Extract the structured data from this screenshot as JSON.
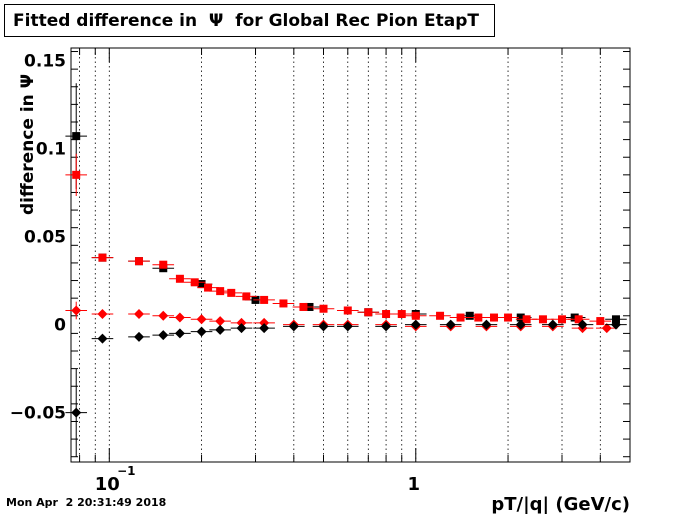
{
  "title": "Fitted difference in  Ψ  for Global Rec Pion EtapT",
  "timestamp": "Mon Apr  2 20:31:49 2018",
  "chart_data": {
    "type": "scatter",
    "title": "Fitted difference in  Ψ  for Global Rec Pion EtapT",
    "xlabel": "pT/|q| (GeV/c)",
    "ylabel": "difference in  Ψ",
    "xscale": "log",
    "xlim": [
      0.075,
      5.0
    ],
    "ylim": [
      -0.078,
      0.157
    ],
    "grid": true,
    "x_ticks": [
      {
        "value": 0.1,
        "label": "10",
        "sup": "−1"
      },
      {
        "value": 1,
        "label": "1"
      }
    ],
    "y_ticks": [
      {
        "value": -0.05,
        "label": "−0.05"
      },
      {
        "value": 0,
        "label": "0"
      },
      {
        "value": 0.05,
        "label": "0.05"
      },
      {
        "value": 0.1,
        "label": "0.1"
      },
      {
        "value": 0.15,
        "label": "0.15"
      }
    ],
    "series": [
      {
        "marker": "square",
        "color": "#000000",
        "x": [
          0.078,
          0.095,
          0.125,
          0.15,
          0.2,
          0.3,
          0.45,
          0.7,
          1.0,
          1.5,
          2.2,
          3.3,
          4.5
        ],
        "y": [
          0.107,
          0.038,
          0.036,
          0.032,
          0.023,
          0.014,
          0.01,
          0.007,
          0.006,
          0.005,
          0.004,
          0.004,
          0.003
        ],
        "err": [
          0.03,
          0.002,
          0.002,
          0.002,
          0.001,
          0.001,
          0.001,
          0.001,
          0.001,
          0.001,
          0.001,
          0.001,
          0.002
        ]
      },
      {
        "marker": "square",
        "color": "#ff0000",
        "x": [
          0.078,
          0.095,
          0.125,
          0.15,
          0.17,
          0.19,
          0.21,
          0.23,
          0.25,
          0.28,
          0.32,
          0.37,
          0.43,
          0.5,
          0.6,
          0.7,
          0.8,
          0.9,
          1.0,
          1.2,
          1.4,
          1.6,
          1.8,
          2.0,
          2.3,
          2.6,
          3.0,
          3.4,
          4.0
        ],
        "y": [
          0.085,
          0.038,
          0.036,
          0.034,
          0.026,
          0.024,
          0.021,
          0.019,
          0.018,
          0.016,
          0.014,
          0.012,
          0.01,
          0.009,
          0.008,
          0.007,
          0.006,
          0.006,
          0.005,
          0.005,
          0.004,
          0.004,
          0.004,
          0.004,
          0.003,
          0.003,
          0.003,
          0.003,
          0.002
        ],
        "err": [
          0.012,
          0.002,
          0.002,
          0.002,
          0.002,
          0.001,
          0.001,
          0.001,
          0.001,
          0.001,
          0.001,
          0.001,
          0.001,
          0.001,
          0.001,
          0.001,
          0.001,
          0.001,
          0.001,
          0.001,
          0.001,
          0.001,
          0.001,
          0.001,
          0.001,
          0.001,
          0.001,
          0.001,
          0.002
        ]
      },
      {
        "marker": "diamond",
        "color": "#ff0000",
        "x": [
          0.078,
          0.095,
          0.125,
          0.15,
          0.17,
          0.2,
          0.23,
          0.27,
          0.32,
          0.4,
          0.5,
          0.6,
          0.8,
          1.0,
          1.3,
          1.7,
          2.2,
          2.8,
          3.5,
          4.2
        ],
        "y": [
          0.008,
          0.006,
          0.006,
          0.005,
          0.004,
          0.003,
          0.002,
          0.001,
          0.001,
          0.0,
          0.0,
          0.0,
          0.0,
          -0.001,
          -0.001,
          -0.001,
          -0.001,
          -0.001,
          -0.002,
          -0.002
        ],
        "err": [
          0.005,
          0.001,
          0.001,
          0.001,
          0.001,
          0.001,
          0.001,
          0.001,
          0.001,
          0.001,
          0.001,
          0.001,
          0.001,
          0.001,
          0.001,
          0.001,
          0.001,
          0.001,
          0.001,
          0.001
        ]
      },
      {
        "marker": "diamond",
        "color": "#000000",
        "x": [
          0.078,
          0.095,
          0.125,
          0.15,
          0.17,
          0.2,
          0.23,
          0.27,
          0.32,
          0.4,
          0.5,
          0.6,
          0.8,
          1.0,
          1.3,
          1.7,
          2.2,
          2.8,
          3.5,
          4.5
        ],
        "y": [
          -0.05,
          -0.008,
          -0.007,
          -0.006,
          -0.005,
          -0.004,
          -0.003,
          -0.002,
          -0.002,
          -0.001,
          -0.001,
          -0.001,
          -0.001,
          0.0,
          0.0,
          0.0,
          0.0,
          0.0,
          0.0,
          0.0
        ],
        "err": [
          0.025,
          0.001,
          0.001,
          0.001,
          0.001,
          0.001,
          0.001,
          0.001,
          0.001,
          0.001,
          0.001,
          0.001,
          0.001,
          0.001,
          0.001,
          0.001,
          0.001,
          0.001,
          0.001,
          0.002
        ]
      }
    ]
  }
}
